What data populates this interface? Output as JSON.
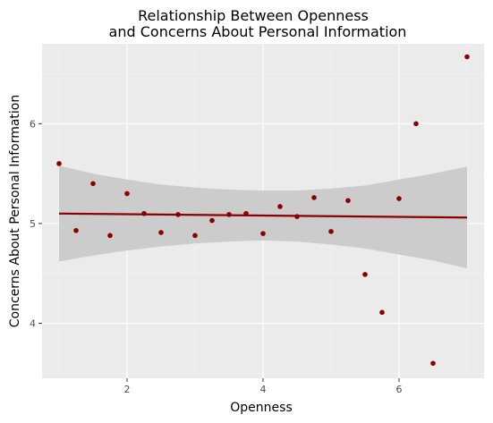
{
  "chart_data": {
    "type": "scatter",
    "title_line1": "Relationship Between Openness",
    "title_line2": "and Concerns About Personal Information",
    "xlabel": "Openness",
    "ylabel": "Concerns About Personal Information",
    "xlim": [
      0.75,
      7.25
    ],
    "ylim": [
      3.45,
      6.8
    ],
    "x_ticks": [
      2,
      4,
      6
    ],
    "y_ticks": [
      4,
      5,
      6
    ],
    "x_tick_labels": [
      "2",
      "4",
      "6"
    ],
    "y_tick_labels": [
      "4",
      "5",
      "6"
    ],
    "grid": true,
    "point_color": "#8b0000",
    "line_color": "#8b0000",
    "band_color": "#cccccc",
    "panel_color": "#ebebeb",
    "points": [
      {
        "x": 1.0,
        "y": 5.6
      },
      {
        "x": 1.25,
        "y": 4.93
      },
      {
        "x": 1.5,
        "y": 5.4
      },
      {
        "x": 1.75,
        "y": 4.88
      },
      {
        "x": 2.0,
        "y": 5.3
      },
      {
        "x": 2.25,
        "y": 5.1
      },
      {
        "x": 2.5,
        "y": 4.91
      },
      {
        "x": 2.75,
        "y": 5.09
      },
      {
        "x": 3.0,
        "y": 4.88
      },
      {
        "x": 3.25,
        "y": 5.03
      },
      {
        "x": 3.5,
        "y": 5.09
      },
      {
        "x": 3.75,
        "y": 5.1
      },
      {
        "x": 4.0,
        "y": 4.9
      },
      {
        "x": 4.25,
        "y": 5.17
      },
      {
        "x": 4.5,
        "y": 5.07
      },
      {
        "x": 4.75,
        "y": 5.26
      },
      {
        "x": 5.0,
        "y": 4.92
      },
      {
        "x": 5.25,
        "y": 5.23
      },
      {
        "x": 5.5,
        "y": 4.49
      },
      {
        "x": 5.75,
        "y": 4.11
      },
      {
        "x": 6.0,
        "y": 5.25
      },
      {
        "x": 6.25,
        "y": 6.0
      },
      {
        "x": 6.5,
        "y": 3.6
      },
      {
        "x": 7.0,
        "y": 6.67
      }
    ],
    "fit_line": [
      {
        "x": 1.0,
        "y": 5.1
      },
      {
        "x": 7.0,
        "y": 5.06
      }
    ],
    "confidence_band": [
      {
        "x": 1.0,
        "lower": 4.62,
        "upper": 5.58
      },
      {
        "x": 1.5,
        "lower": 4.68,
        "upper": 5.5
      },
      {
        "x": 2.0,
        "lower": 4.73,
        "upper": 5.44
      },
      {
        "x": 2.5,
        "lower": 4.77,
        "upper": 5.39
      },
      {
        "x": 3.0,
        "lower": 4.8,
        "upper": 5.36
      },
      {
        "x": 3.5,
        "lower": 4.82,
        "upper": 5.34
      },
      {
        "x": 4.0,
        "lower": 4.83,
        "upper": 5.33
      },
      {
        "x": 4.5,
        "lower": 4.82,
        "upper": 5.33
      },
      {
        "x": 5.0,
        "lower": 4.79,
        "upper": 5.35
      },
      {
        "x": 5.5,
        "lower": 4.75,
        "upper": 5.38
      },
      {
        "x": 6.0,
        "lower": 4.69,
        "upper": 5.44
      },
      {
        "x": 6.5,
        "lower": 4.63,
        "upper": 5.5
      },
      {
        "x": 7.0,
        "lower": 4.55,
        "upper": 5.57
      }
    ]
  }
}
